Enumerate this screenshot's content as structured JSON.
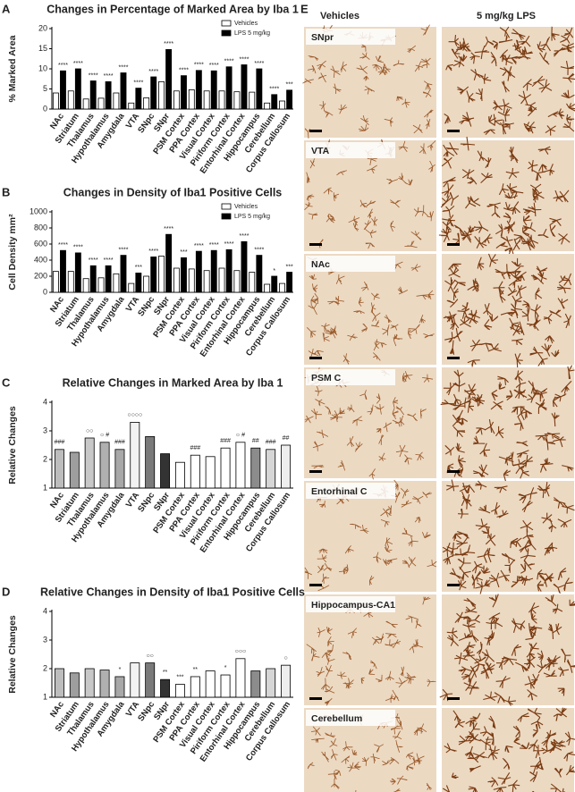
{
  "chart_data": [
    {
      "type": "bar",
      "panel": "A",
      "title": "Changes in Percentage of Marked Area by Iba 1",
      "ylabel": "% Marked Area",
      "categories": [
        "NAc",
        "Striatum",
        "Thalamus",
        "Hypothalamus",
        "Amygdala",
        "VTA",
        "SNpc",
        "SNpr",
        "PSM Cortex",
        "PPA Cortex",
        "Visual Cortex",
        "Piriform Cortex",
        "Entorhinal Cortex",
        "Hippocampus",
        "Cerebellum",
        "Corpus Callosum"
      ],
      "series": [
        {
          "name": "Vehicles",
          "color": "#ffffff",
          "values": [
            4.0,
            4.5,
            2.5,
            2.7,
            4.0,
            1.5,
            2.8,
            6.8,
            4.5,
            4.8,
            4.5,
            4.5,
            4.3,
            4.2,
            1.5,
            2.0
          ]
        },
        {
          "name": "LPS 5 mg/kg",
          "color": "#000000",
          "values": [
            9.5,
            10.0,
            7.0,
            6.8,
            9.0,
            5.2,
            8.0,
            14.8,
            8.3,
            9.6,
            9.5,
            10.5,
            11.0,
            10.0,
            3.6,
            4.7
          ],
          "significance": [
            "****",
            "****",
            "****",
            "****",
            "****",
            "****",
            "****",
            "****",
            "****",
            "****",
            "****",
            "****",
            "****",
            "****",
            "****",
            "***"
          ]
        }
      ],
      "ylim": [
        0,
        20
      ],
      "yticks": [
        0,
        5,
        10,
        15,
        20
      ],
      "legend": "upper right"
    },
    {
      "type": "bar",
      "panel": "B",
      "title": "Changes in Density of Iba1 Positive Cells",
      "ylabel": "Cell Density mm²",
      "categories": [
        "NAc",
        "Striatum",
        "Thalamus",
        "Hypothalamus",
        "Amygdala",
        "VTA",
        "SNpc",
        "SNpr",
        "PSM Cortex",
        "PPA Cortex",
        "Visual Cortex",
        "Piriform Cortex",
        "Entorhinal Cortex",
        "Hippocampus",
        "Cerebellum",
        "Corpus Callosum"
      ],
      "series": [
        {
          "name": "Vehicles",
          "color": "#ffffff",
          "values": [
            260,
            260,
            170,
            180,
            230,
            110,
            200,
            450,
            300,
            290,
            270,
            300,
            270,
            250,
            100,
            110
          ]
        },
        {
          "name": "LPS 5 mg/kg",
          "color": "#000000",
          "values": [
            520,
            490,
            330,
            330,
            460,
            240,
            440,
            720,
            430,
            510,
            520,
            530,
            630,
            460,
            200,
            250
          ],
          "significance": [
            "****",
            "****",
            "****",
            "****",
            "****",
            "***",
            "****",
            "****",
            "***",
            "****",
            "****",
            "****",
            "****",
            "****",
            "*",
            "***"
          ]
        }
      ],
      "ylim": [
        0,
        1000
      ],
      "yticks": [
        0,
        200,
        400,
        600,
        800,
        1000
      ],
      "legend": "upper right"
    },
    {
      "type": "bar",
      "panel": "C",
      "title": "Relative Changes in Marked Area by Iba 1",
      "ylabel": "Relative Changes",
      "categories": [
        "NAc",
        "Striatum",
        "Thalamus",
        "Hypothalamus",
        "Amygdala",
        "VTA",
        "SNpc",
        "SNpr",
        "PSM Cortex",
        "PPA Cortex",
        "Visual Cortex",
        "Piriform Cortex",
        "Entorhinal Cortex",
        "Hippocampus",
        "Cerebellum",
        "Corpus Callosum"
      ],
      "values": [
        2.35,
        2.25,
        2.75,
        2.6,
        2.35,
        3.3,
        2.8,
        2.2,
        1.9,
        2.15,
        2.1,
        2.4,
        2.6,
        2.4,
        2.35,
        2.5
      ],
      "colors": [
        "#bdbdbd",
        "#9e9e9e",
        "#c8c8c8",
        "#b0b0b0",
        "#a8a8a8",
        "#f2f2f2",
        "#7a7a7a",
        "#333333",
        "#ffffff",
        "#ffffff",
        "#ffffff",
        "#ffffff",
        "#ffffff",
        "#8c8c8c",
        "#d6d6d6",
        "#eeeeee"
      ],
      "annotations": [
        "###",
        null,
        "○○",
        "○ #",
        "###",
        "○○○○",
        null,
        null,
        null,
        "###",
        null,
        "###",
        "○ #",
        "##",
        "###",
        "##"
      ],
      "ylim": [
        1,
        4
      ],
      "yticks": [
        1,
        2,
        3,
        4
      ]
    },
    {
      "type": "bar",
      "panel": "D",
      "title": "Relative Changes in Density of Iba1 Positive Cells",
      "ylabel": "Relative Changes",
      "categories": [
        "NAc",
        "Striatum",
        "Thalamus",
        "Hypothalamus",
        "Amygdala",
        "VTA",
        "SNpc",
        "SNpr",
        "PSM Cortex",
        "PPA Cortex",
        "Visual Cortex",
        "Piriform Cortex",
        "Entorhinal Cortex",
        "Hippocampus",
        "Cerebellum",
        "Corpus Callosum"
      ],
      "values": [
        2.0,
        1.85,
        2.0,
        1.95,
        1.72,
        2.2,
        2.2,
        1.62,
        1.45,
        1.72,
        1.92,
        1.78,
        2.35,
        1.92,
        2.0,
        2.12
      ],
      "colors": [
        "#bdbdbd",
        "#9e9e9e",
        "#c8c8c8",
        "#b0b0b0",
        "#a8a8a8",
        "#f2f2f2",
        "#7a7a7a",
        "#333333",
        "#ffffff",
        "#ffffff",
        "#ffffff",
        "#ffffff",
        "#ffffff",
        "#8c8c8c",
        "#d6d6d6",
        "#eeeeee"
      ],
      "annotations": [
        null,
        null,
        null,
        null,
        "*",
        null,
        "○○",
        "**",
        "***",
        "**",
        null,
        "*",
        "○○○",
        null,
        null,
        "○"
      ],
      "ylim": [
        1,
        4
      ],
      "yticks": [
        1,
        2,
        3,
        4
      ]
    }
  ],
  "panel_e": {
    "label": "E",
    "columns": [
      "Vehicles",
      "5 mg/kg LPS"
    ],
    "rows": [
      "SNpr",
      "VTA",
      "NAc",
      "PSM C",
      "Entorhinal C",
      "Hippocampus-CA1",
      "Cerebellum"
    ]
  }
}
